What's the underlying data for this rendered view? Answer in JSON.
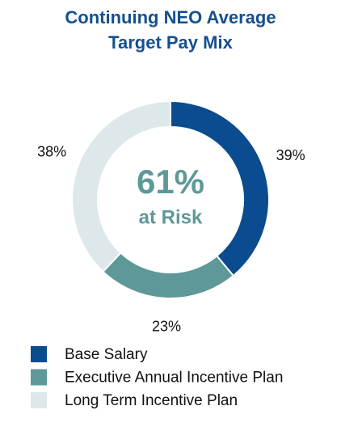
{
  "chart_data": {
    "type": "donut",
    "title": "Continuing NEO Average Target Pay Mix",
    "categories": [
      "Base Salary",
      "Executive Annual Incentive Plan",
      "Long Term Incentive Plan"
    ],
    "values": [
      39,
      23,
      38
    ],
    "value_labels": [
      "39%",
      "23%",
      "38%"
    ],
    "colors": [
      "#0b4b8f",
      "#5f9898",
      "#dde8ea"
    ],
    "annotations": [
      "61%",
      "at Risk"
    ]
  }
}
